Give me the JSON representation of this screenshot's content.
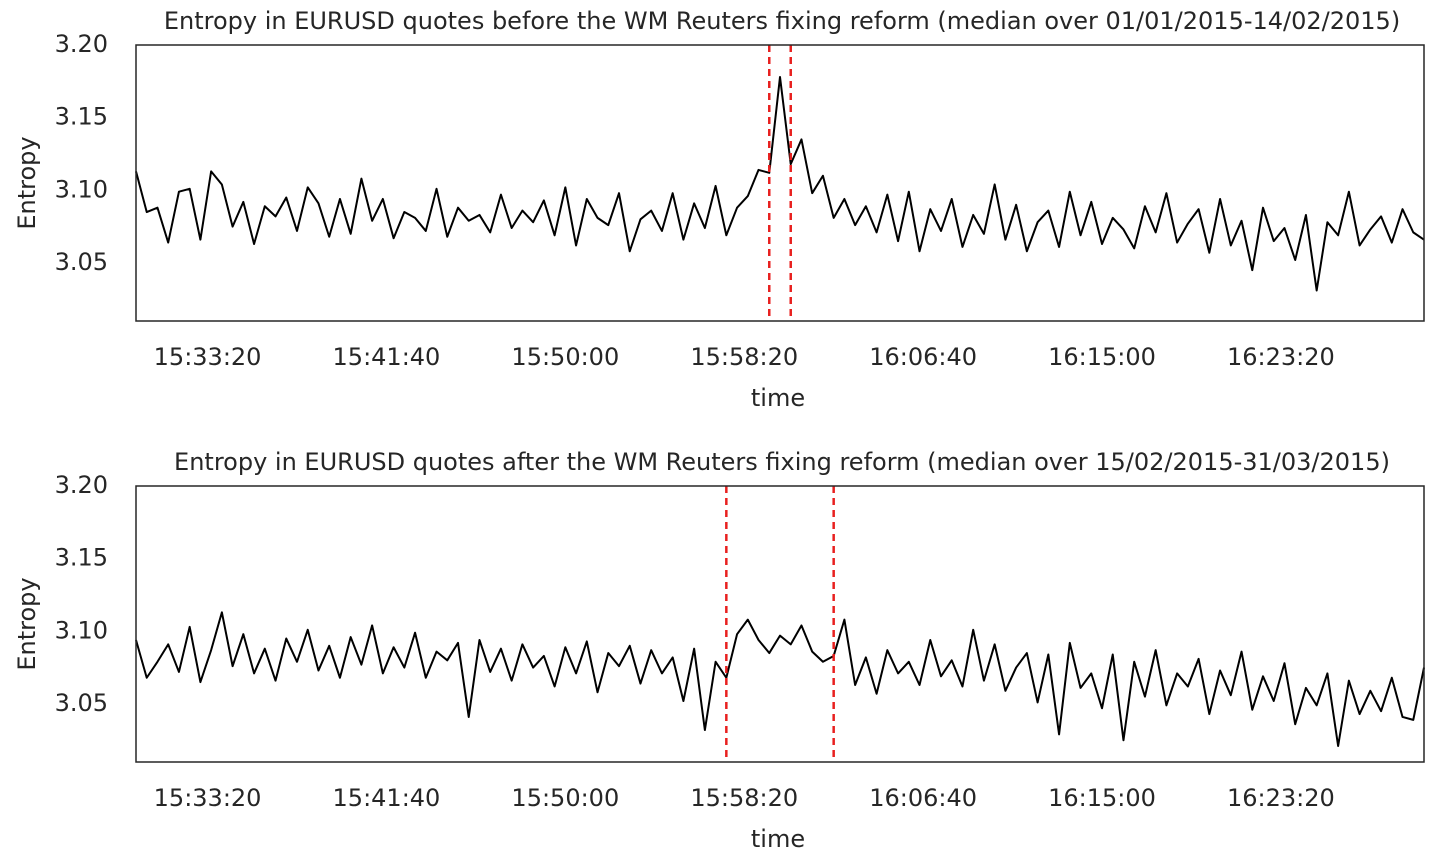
{
  "chart_data": [
    {
      "type": "line",
      "title": "Entropy in EURUSD quotes before the WM Reuters fixing reform (median over 01/01/2015-14/02/2015)",
      "xlabel": "time",
      "ylabel": "Entropy",
      "color": "#000000",
      "x": [
        "15:30:00",
        "15:30:30",
        "15:31:00",
        "15:31:30",
        "15:32:00",
        "15:32:30",
        "15:33:00",
        "15:33:30",
        "15:34:00",
        "15:34:30",
        "15:35:00",
        "15:35:30",
        "15:36:00",
        "15:36:30",
        "15:37:00",
        "15:37:30",
        "15:38:00",
        "15:38:30",
        "15:39:00",
        "15:39:30",
        "15:40:00",
        "15:40:30",
        "15:41:00",
        "15:41:30",
        "15:42:00",
        "15:42:30",
        "15:43:00",
        "15:43:30",
        "15:44:00",
        "15:44:30",
        "15:45:00",
        "15:45:30",
        "15:46:00",
        "15:46:30",
        "15:47:00",
        "15:47:30",
        "15:48:00",
        "15:48:30",
        "15:49:00",
        "15:49:30",
        "15:50:00",
        "15:50:30",
        "15:51:00",
        "15:51:30",
        "15:52:00",
        "15:52:30",
        "15:53:00",
        "15:53:30",
        "15:54:00",
        "15:54:30",
        "15:55:00",
        "15:55:30",
        "15:56:00",
        "15:56:30",
        "15:57:00",
        "15:57:30",
        "15:58:00",
        "15:58:30",
        "15:59:00",
        "15:59:30",
        "16:00:00",
        "16:00:30",
        "16:01:00",
        "16:01:30",
        "16:02:00",
        "16:02:30",
        "16:03:00",
        "16:03:30",
        "16:04:00",
        "16:04:30",
        "16:05:00",
        "16:05:30",
        "16:06:00",
        "16:06:30",
        "16:07:00",
        "16:07:30",
        "16:08:00",
        "16:08:30",
        "16:09:00",
        "16:09:30",
        "16:10:00",
        "16:10:30",
        "16:11:00",
        "16:11:30",
        "16:12:00",
        "16:12:30",
        "16:13:00",
        "16:13:30",
        "16:14:00",
        "16:14:30",
        "16:15:00",
        "16:15:30",
        "16:16:00",
        "16:16:30",
        "16:17:00",
        "16:17:30",
        "16:18:00",
        "16:18:30",
        "16:19:00",
        "16:19:30",
        "16:20:00",
        "16:20:30",
        "16:21:00",
        "16:21:30",
        "16:22:00",
        "16:22:30",
        "16:23:00",
        "16:23:30",
        "16:24:00",
        "16:24:30",
        "16:25:00",
        "16:25:30",
        "16:26:00",
        "16:26:30",
        "16:27:00",
        "16:27:30",
        "16:28:00",
        "16:28:30",
        "16:29:00",
        "16:29:30",
        "16:30:00"
      ],
      "values": [
        3.113,
        3.085,
        3.088,
        3.064,
        3.099,
        3.101,
        3.066,
        3.113,
        3.104,
        3.075,
        3.092,
        3.063,
        3.089,
        3.082,
        3.095,
        3.072,
        3.102,
        3.091,
        3.068,
        3.094,
        3.07,
        3.108,
        3.079,
        3.094,
        3.067,
        3.085,
        3.081,
        3.072,
        3.101,
        3.068,
        3.088,
        3.079,
        3.083,
        3.071,
        3.097,
        3.074,
        3.086,
        3.078,
        3.093,
        3.069,
        3.102,
        3.062,
        3.094,
        3.081,
        3.076,
        3.098,
        3.058,
        3.08,
        3.086,
        3.072,
        3.098,
        3.066,
        3.091,
        3.074,
        3.103,
        3.069,
        3.088,
        3.096,
        3.114,
        3.112,
        3.178,
        3.118,
        3.135,
        3.098,
        3.11,
        3.081,
        3.094,
        3.076,
        3.089,
        3.071,
        3.097,
        3.065,
        3.099,
        3.058,
        3.087,
        3.072,
        3.094,
        3.061,
        3.083,
        3.07,
        3.104,
        3.066,
        3.09,
        3.058,
        3.078,
        3.086,
        3.061,
        3.099,
        3.069,
        3.092,
        3.063,
        3.081,
        3.073,
        3.06,
        3.089,
        3.071,
        3.098,
        3.064,
        3.077,
        3.087,
        3.057,
        3.094,
        3.062,
        3.079,
        3.045,
        3.088,
        3.065,
        3.074,
        3.052,
        3.083,
        3.031,
        3.078,
        3.069,
        3.099,
        3.062,
        3.073,
        3.082,
        3.064,
        3.087,
        3.071,
        3.066
      ],
      "vlines": [
        "15:59:30",
        "16:00:30"
      ],
      "vline_color": "#e8201f",
      "xlim": [
        "15:30:00",
        "16:30:00"
      ],
      "xticks": [
        "15:33:20",
        "15:41:40",
        "15:50:00",
        "15:58:20",
        "16:06:40",
        "16:15:00",
        "16:23:20"
      ],
      "ylim": [
        3.01,
        3.2
      ],
      "yticks": [
        3.05,
        {
          "value": 3.1,
          "label": "3.10"
        },
        3.15,
        {
          "value": 3.2,
          "label": "3.20"
        }
      ],
      "grid": false
    },
    {
      "type": "line",
      "title": "Entropy in EURUSD quotes after the WM Reuters fixing reform (median over 15/02/2015-31/03/2015)",
      "xlabel": "time",
      "ylabel": "Entropy",
      "color": "#000000",
      "x": [
        "15:30:00",
        "15:30:30",
        "15:31:00",
        "15:31:30",
        "15:32:00",
        "15:32:30",
        "15:33:00",
        "15:33:30",
        "15:34:00",
        "15:34:30",
        "15:35:00",
        "15:35:30",
        "15:36:00",
        "15:36:30",
        "15:37:00",
        "15:37:30",
        "15:38:00",
        "15:38:30",
        "15:39:00",
        "15:39:30",
        "15:40:00",
        "15:40:30",
        "15:41:00",
        "15:41:30",
        "15:42:00",
        "15:42:30",
        "15:43:00",
        "15:43:30",
        "15:44:00",
        "15:44:30",
        "15:45:00",
        "15:45:30",
        "15:46:00",
        "15:46:30",
        "15:47:00",
        "15:47:30",
        "15:48:00",
        "15:48:30",
        "15:49:00",
        "15:49:30",
        "15:50:00",
        "15:50:30",
        "15:51:00",
        "15:51:30",
        "15:52:00",
        "15:52:30",
        "15:53:00",
        "15:53:30",
        "15:54:00",
        "15:54:30",
        "15:55:00",
        "15:55:30",
        "15:56:00",
        "15:56:30",
        "15:57:00",
        "15:57:30",
        "15:58:00",
        "15:58:30",
        "15:59:00",
        "15:59:30",
        "16:00:00",
        "16:00:30",
        "16:01:00",
        "16:01:30",
        "16:02:00",
        "16:02:30",
        "16:03:00",
        "16:03:30",
        "16:04:00",
        "16:04:30",
        "16:05:00",
        "16:05:30",
        "16:06:00",
        "16:06:30",
        "16:07:00",
        "16:07:30",
        "16:08:00",
        "16:08:30",
        "16:09:00",
        "16:09:30",
        "16:10:00",
        "16:10:30",
        "16:11:00",
        "16:11:30",
        "16:12:00",
        "16:12:30",
        "16:13:00",
        "16:13:30",
        "16:14:00",
        "16:14:30",
        "16:15:00",
        "16:15:30",
        "16:16:00",
        "16:16:30",
        "16:17:00",
        "16:17:30",
        "16:18:00",
        "16:18:30",
        "16:19:00",
        "16:19:30",
        "16:20:00",
        "16:20:30",
        "16:21:00",
        "16:21:30",
        "16:22:00",
        "16:22:30",
        "16:23:00",
        "16:23:30",
        "16:24:00",
        "16:24:30",
        "16:25:00",
        "16:25:30",
        "16:26:00",
        "16:26:30",
        "16:27:00",
        "16:27:30",
        "16:28:00",
        "16:28:30",
        "16:29:00",
        "16:29:30",
        "16:30:00"
      ],
      "values": [
        3.094,
        3.068,
        3.079,
        3.091,
        3.072,
        3.103,
        3.065,
        3.087,
        3.113,
        3.076,
        3.098,
        3.071,
        3.088,
        3.066,
        3.095,
        3.079,
        3.101,
        3.073,
        3.09,
        3.068,
        3.096,
        3.077,
        3.104,
        3.071,
        3.089,
        3.075,
        3.099,
        3.068,
        3.086,
        3.08,
        3.092,
        3.041,
        3.094,
        3.072,
        3.088,
        3.066,
        3.091,
        3.075,
        3.083,
        3.062,
        3.089,
        3.071,
        3.093,
        3.058,
        3.085,
        3.076,
        3.09,
        3.064,
        3.087,
        3.071,
        3.082,
        3.052,
        3.088,
        3.032,
        3.079,
        3.068,
        3.098,
        3.108,
        3.094,
        3.085,
        3.097,
        3.091,
        3.104,
        3.086,
        3.079,
        3.083,
        3.108,
        3.063,
        3.082,
        3.057,
        3.087,
        3.071,
        3.079,
        3.063,
        3.094,
        3.069,
        3.08,
        3.062,
        3.101,
        3.066,
        3.091,
        3.059,
        3.075,
        3.085,
        3.051,
        3.084,
        3.029,
        3.092,
        3.061,
        3.071,
        3.047,
        3.084,
        3.025,
        3.079,
        3.055,
        3.087,
        3.049,
        3.071,
        3.062,
        3.081,
        3.043,
        3.073,
        3.056,
        3.086,
        3.046,
        3.069,
        3.052,
        3.078,
        3.036,
        3.061,
        3.049,
        3.071,
        3.021,
        3.066,
        3.043,
        3.059,
        3.045,
        3.068,
        3.041,
        3.039,
        3.075
      ],
      "vlines": [
        "15:57:30",
        "16:02:30"
      ],
      "vline_color": "#e8201f",
      "xlim": [
        "15:30:00",
        "16:30:00"
      ],
      "xticks": [
        "15:33:20",
        "15:41:40",
        "15:50:00",
        "15:58:20",
        "16:06:40",
        "16:15:00",
        "16:23:20"
      ],
      "ylim": [
        3.01,
        3.2
      ],
      "yticks": [
        3.05,
        {
          "value": 3.1,
          "label": "3.10"
        },
        3.15,
        {
          "value": 3.2,
          "label": "3.20"
        }
      ],
      "grid": false
    }
  ]
}
